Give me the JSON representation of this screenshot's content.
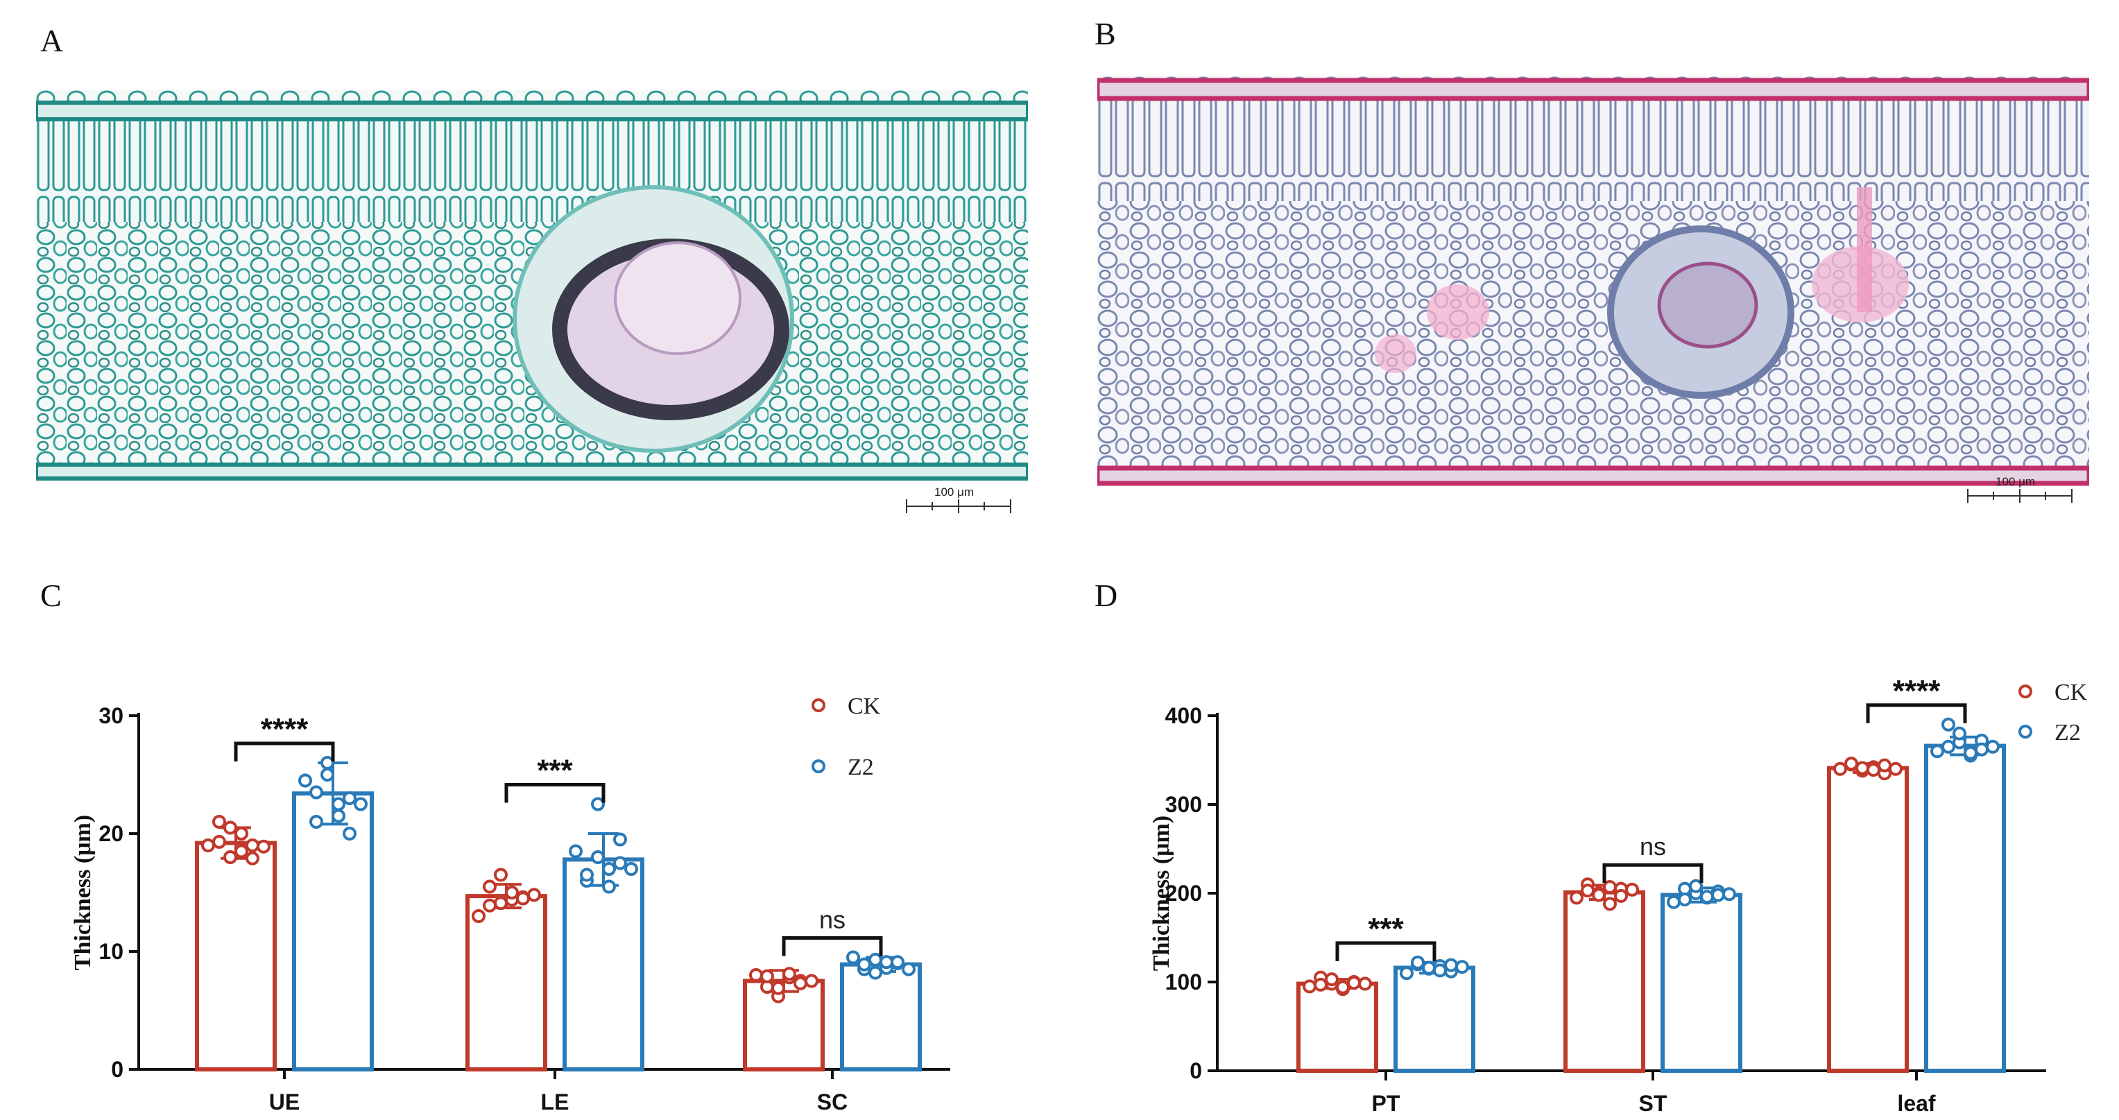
{
  "panels": {
    "A": "A",
    "B": "B",
    "C": "C",
    "D": "D"
  },
  "micrographs": [
    {
      "label": "A",
      "scale_bar": "100 μm",
      "stain": "safranin-fast green cross-section",
      "colors": {
        "tissue": "#2e9a94",
        "background": "#ffffff",
        "vein": "#3a3a4a"
      }
    },
    {
      "label": "B",
      "scale_bar": "100 μm",
      "stain": "safranin-fast green cross-section",
      "colors": {
        "tissue": "#7a88b0",
        "epidermis": "#c0306a",
        "background": "#ffffff"
      }
    }
  ],
  "colors": {
    "CK": "#c0392b",
    "Z2": "#2a7ab8"
  },
  "chart_data": [
    {
      "type": "bar",
      "panel": "C",
      "ylabel": "Thickness (μm)",
      "ylim": [
        0,
        30
      ],
      "yticks": [
        0,
        10,
        20,
        30
      ],
      "categories": [
        "UE",
        "LE",
        "SC"
      ],
      "legend": {
        "position": "top-right",
        "entries": [
          "CK",
          "Z2"
        ]
      },
      "series": [
        {
          "name": "CK",
          "values": [
            19.2,
            14.7,
            7.5
          ],
          "sd": [
            1.3,
            1.0,
            0.9
          ],
          "points": [
            [
              19.0,
              21.0,
              20.5,
              18.5,
              17.9,
              19.3,
              18.0,
              20.0,
              19.0,
              18.9
            ],
            [
              13.0,
              15.5,
              16.5,
              14.4,
              14.6,
              13.9,
              14.1,
              15.0,
              14.5,
              14.8
            ],
            [
              8.0,
              7.0,
              6.2,
              7.8,
              7.5,
              7.9,
              6.9,
              8.1,
              7.3,
              7.5
            ]
          ]
        },
        {
          "name": "Z2",
          "values": [
            23.4,
            17.8,
            8.9
          ],
          "sd": [
            2.6,
            2.2,
            0.6
          ],
          "points": [
            [
              24.5,
              21.0,
              26.0,
              22.5,
              20.0,
              23.5,
              25.0,
              21.5,
              23.0,
              22.5
            ],
            [
              18.5,
              16.0,
              22.5,
              17.0,
              19.5,
              16.5,
              18.0,
              15.5,
              17.5,
              17.0
            ],
            [
              9.5,
              8.5,
              9.3,
              8.6,
              9.0,
              8.9,
              8.2,
              9.1,
              9.1,
              8.5
            ]
          ]
        }
      ],
      "significance": [
        "****",
        "***",
        "ns"
      ]
    },
    {
      "type": "bar",
      "panel": "D",
      "ylabel": "Thickness (μm)",
      "ylim": [
        0,
        400
      ],
      "yticks": [
        0,
        100,
        200,
        300,
        400
      ],
      "categories": [
        "PT",
        "ST",
        "leaf"
      ],
      "legend": {
        "position": "top-right",
        "entries": [
          "CK",
          "Z2"
        ]
      },
      "series": [
        {
          "name": "CK",
          "values": [
            98,
            201,
            341
          ],
          "sd": [
            5,
            8,
            5
          ],
          "points": [
            [
              95,
              105,
              98,
              92,
              100,
              97,
              103,
              94,
              99,
              98
            ],
            [
              195,
              210,
              200,
              188,
              205,
              203,
              198,
              207,
              197,
              204
            ],
            [
              340,
              345,
              338,
              342,
              335,
              346,
              341,
              339,
              344,
              340
            ]
          ]
        },
        {
          "name": "Z2",
          "values": [
            116,
            198,
            366
          ],
          "sd": [
            6,
            8,
            10
          ],
          "points": [
            [
              110,
              120,
              115,
              118,
              112,
              122,
              116,
              113,
              119,
              117
            ],
            [
              190,
              205,
              200,
              195,
              202,
              193,
              208,
              196,
              198,
              199
            ],
            [
              360,
              390,
              370,
              355,
              372,
              365,
              380,
              358,
              362,
              365
            ]
          ]
        }
      ],
      "significance": [
        "***",
        "ns",
        "****"
      ]
    }
  ]
}
